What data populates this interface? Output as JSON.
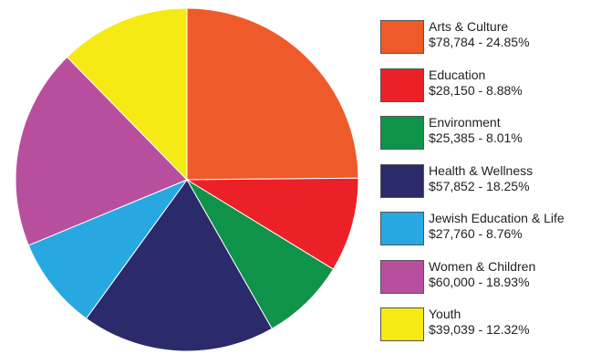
{
  "chart_data": {
    "type": "pie",
    "start_angle_deg": 0,
    "direction": "clockwise",
    "slices": [
      {
        "name": "Arts & Culture",
        "value": 78784,
        "value_label": "$78,784",
        "percent": 24.85,
        "percent_label": "24.85%",
        "color": "#ef5a2a"
      },
      {
        "name": "Education",
        "value": 28150,
        "value_label": "$28,150",
        "percent": 8.88,
        "percent_label": "8.88%",
        "color": "#ec2127"
      },
      {
        "name": "Environment",
        "value": 25385,
        "value_label": "$25,385",
        "percent": 8.01,
        "percent_label": "8.01%",
        "color": "#0f934a"
      },
      {
        "name": "Health & Wellness",
        "value": 57852,
        "value_label": "$57,852",
        "percent": 18.25,
        "percent_label": "18.25%",
        "color": "#2b2a6b"
      },
      {
        "name": "Jewish Education & Life",
        "value": 27760,
        "value_label": "$27,760",
        "percent": 8.76,
        "percent_label": "8.76%",
        "color": "#27a8e0"
      },
      {
        "name": "Women & Children",
        "value": 60000,
        "value_label": "$60,000",
        "percent": 18.93,
        "percent_label": "18.93%",
        "color": "#b84f9e"
      },
      {
        "name": "Youth",
        "value": 39039,
        "value_label": "$39,039",
        "percent": 12.32,
        "percent_label": "12.32%",
        "color": "#f5ea14"
      }
    ],
    "legend": {
      "position": "right"
    }
  }
}
